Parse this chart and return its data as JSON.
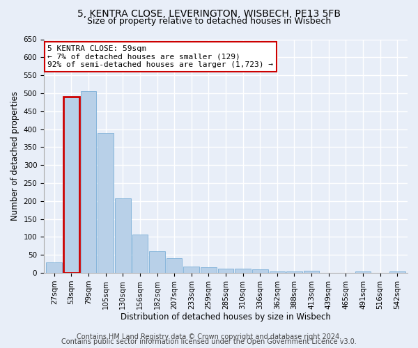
{
  "title1": "5, KENTRA CLOSE, LEVERINGTON, WISBECH, PE13 5FB",
  "title2": "Size of property relative to detached houses in Wisbech",
  "xlabel": "Distribution of detached houses by size in Wisbech",
  "ylabel": "Number of detached properties",
  "categories": [
    "27sqm",
    "53sqm",
    "79sqm",
    "105sqm",
    "130sqm",
    "156sqm",
    "182sqm",
    "207sqm",
    "233sqm",
    "259sqm",
    "285sqm",
    "310sqm",
    "336sqm",
    "362sqm",
    "388sqm",
    "413sqm",
    "439sqm",
    "465sqm",
    "491sqm",
    "516sqm",
    "542sqm"
  ],
  "values": [
    30,
    490,
    505,
    390,
    208,
    107,
    60,
    40,
    18,
    15,
    12,
    11,
    10,
    5,
    5,
    6,
    1,
    1,
    5,
    1,
    5
  ],
  "bar_color": "#b8d0e8",
  "bar_edge_color": "#7aaed6",
  "highlight_index": 1,
  "highlight_edge_color": "#cc0000",
  "annotation_box_text": "5 KENTRA CLOSE: 59sqm\n← 7% of detached houses are smaller (129)\n92% of semi-detached houses are larger (1,723) →",
  "annotation_box_color": "#ffffff",
  "annotation_box_edge_color": "#cc0000",
  "ylim": [
    0,
    650
  ],
  "yticks": [
    0,
    50,
    100,
    150,
    200,
    250,
    300,
    350,
    400,
    450,
    500,
    550,
    600,
    650
  ],
  "footer1": "Contains HM Land Registry data © Crown copyright and database right 2024.",
  "footer2": "Contains public sector information licensed under the Open Government Licence v3.0.",
  "bg_color": "#e8eef8",
  "plot_bg_color": "#e8eef8",
  "grid_color": "#ffffff",
  "title1_fontsize": 10,
  "title2_fontsize": 9,
  "annotation_fontsize": 8,
  "footer_fontsize": 7,
  "axis_label_fontsize": 8.5,
  "tick_fontsize": 7.5
}
